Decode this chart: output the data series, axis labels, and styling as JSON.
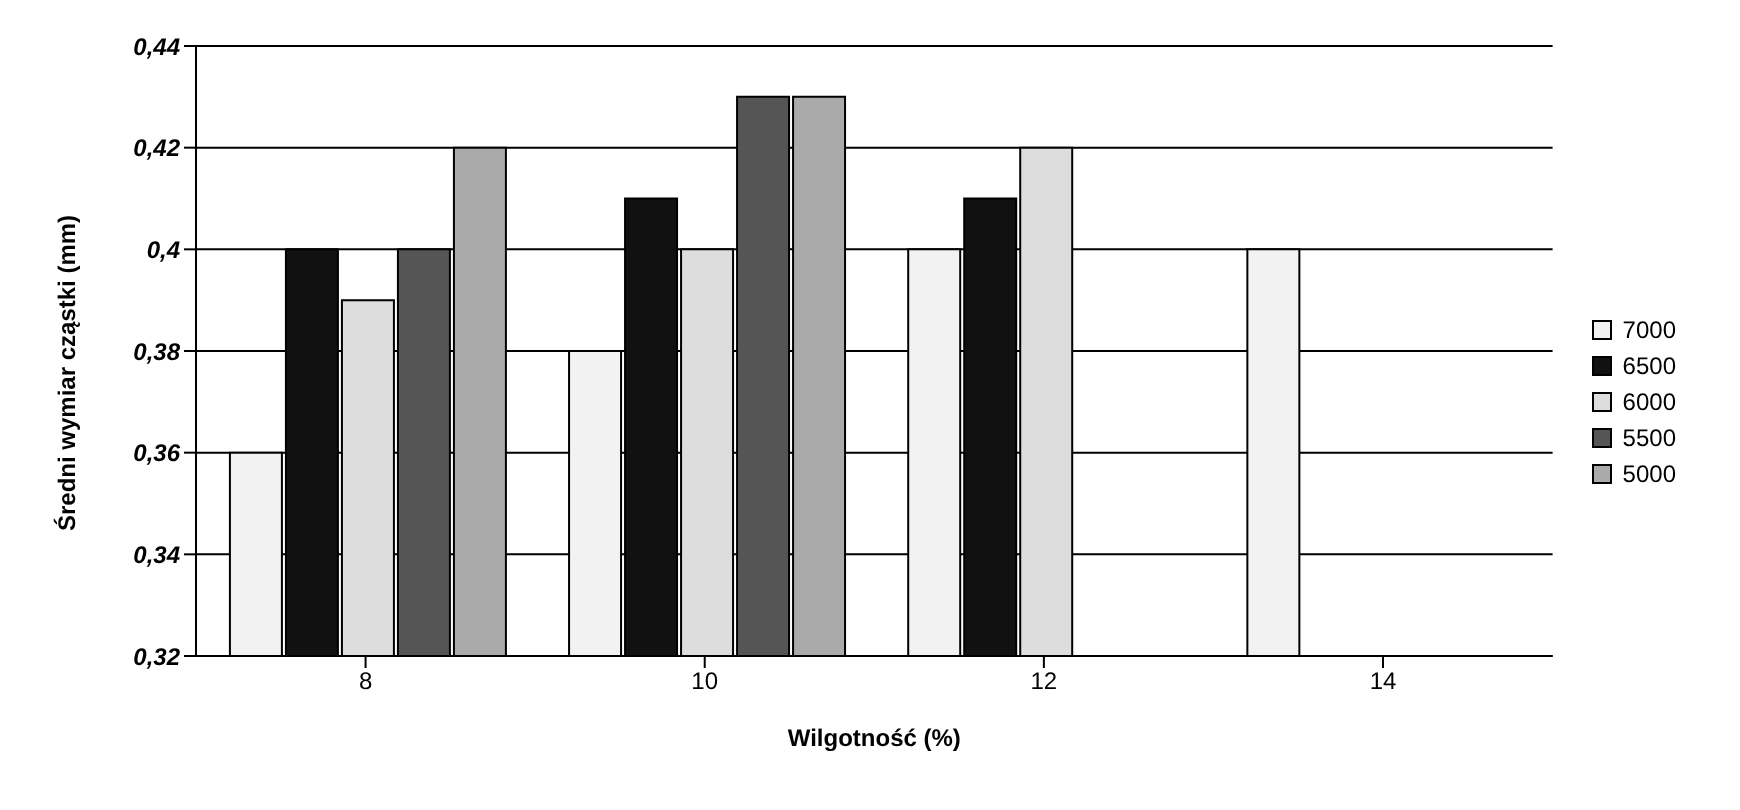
{
  "chart_data": {
    "type": "bar",
    "xlabel": "Wilgotność (%)",
    "ylabel": "Średni wymiar cząstki (mm)",
    "categories": [
      "8",
      "10",
      "12",
      "14"
    ],
    "series": [
      {
        "name": "7000",
        "color": "#f2f2f2",
        "values": [
          0.36,
          0.38,
          0.4,
          0.4
        ]
      },
      {
        "name": "6500",
        "color": "#111111",
        "values": [
          0.4,
          0.41,
          0.41,
          null
        ]
      },
      {
        "name": "6000",
        "color": "#dddddd",
        "values": [
          0.39,
          0.4,
          0.42,
          null
        ]
      },
      {
        "name": "5500",
        "color": "#555555",
        "values": [
          0.4,
          0.43,
          null,
          null
        ]
      },
      {
        "name": "5000",
        "color": "#aaaaaa",
        "values": [
          0.42,
          0.43,
          null,
          null
        ]
      }
    ],
    "ylim": [
      0.32,
      0.44
    ],
    "yticks": [
      {
        "value": 0.32,
        "label": "0,32"
      },
      {
        "value": 0.34,
        "label": "0,34"
      },
      {
        "value": 0.36,
        "label": "0,36"
      },
      {
        "value": 0.38,
        "label": "0,38"
      },
      {
        "value": 0.4,
        "label": "0,4"
      },
      {
        "value": 0.42,
        "label": "0,42"
      },
      {
        "value": 0.44,
        "label": "0,44"
      }
    ],
    "grid": "y",
    "legend": "right"
  }
}
